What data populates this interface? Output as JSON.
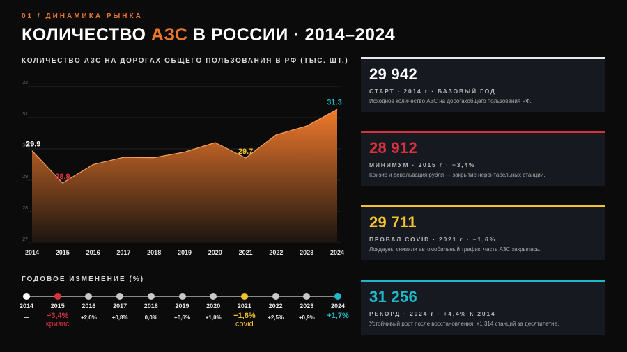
{
  "header": {
    "kicker": "01 / ДИНАМИКА РЫНКА",
    "title_pre": "КОЛИЧЕСТВО ",
    "title_accent": "АЗС",
    "title_post": " В РОССИИ · 2014–2024"
  },
  "chart_subtitle": "КОЛИЧЕСТВО АЗС НА ДОРОГАХ ОБЩЕГО ПОЛЬЗОВАНИЯ В РФ (ТЫС. ШТ.)",
  "chart_data": {
    "type": "area",
    "title": "КОЛИЧЕСТВО АЗС НА ДОРОГАХ ОБЩЕГО ПОЛЬЗОВАНИЯ В РФ (ТЫС. ШТ.)",
    "x": [
      "2014",
      "2015",
      "2016",
      "2017",
      "2018",
      "2019",
      "2020",
      "2021",
      "2022",
      "2023",
      "2024"
    ],
    "series": [
      {
        "values": [
          29.94,
          28.91,
          29.5,
          29.73,
          29.72,
          29.9,
          30.2,
          29.71,
          30.45,
          30.73,
          31.26
        ]
      }
    ],
    "ylim": [
      27,
      32
    ],
    "yticks": [
      "27",
      "28",
      "29",
      "30",
      "31",
      "32"
    ],
    "grid": true,
    "annotations": [
      {
        "index": 0,
        "text": "29.9",
        "color": "#ffffff"
      },
      {
        "index": 1,
        "text": "28.9",
        "color": "#d8323f"
      },
      {
        "index": 7,
        "text": "29.7",
        "color": "#f2c12e"
      },
      {
        "index": 10,
        "text": "31.3",
        "color": "#1fb8c9"
      }
    ],
    "colors": {
      "fill_top": "#f07a2c",
      "fill_bottom": "#1a1410",
      "line": "#f5a15c"
    }
  },
  "yoy": {
    "title": "ГОДОВОЕ ИЗМЕНЕНИЕ (%)",
    "items": [
      {
        "year": "2014",
        "value": "—",
        "note": "",
        "dot": "#ffffff",
        "color": "#e6e6e6"
      },
      {
        "year": "2015",
        "value": "−3,4%",
        "note": "кризис",
        "dot": "#d8323f",
        "color": "#d8323f"
      },
      {
        "year": "2016",
        "value": "+2,0%",
        "note": "",
        "dot": "#c8c8c8",
        "color": "#e6e6e6"
      },
      {
        "year": "2017",
        "value": "+0,8%",
        "note": "",
        "dot": "#c8c8c8",
        "color": "#e6e6e6"
      },
      {
        "year": "2018",
        "value": "0,0%",
        "note": "",
        "dot": "#c8c8c8",
        "color": "#e6e6e6"
      },
      {
        "year": "2019",
        "value": "+0,6%",
        "note": "",
        "dot": "#c8c8c8",
        "color": "#e6e6e6"
      },
      {
        "year": "2020",
        "value": "+1,0%",
        "note": "",
        "dot": "#c8c8c8",
        "color": "#e6e6e6"
      },
      {
        "year": "2021",
        "value": "−1,6%",
        "note": "covid",
        "dot": "#f2c12e",
        "color": "#f2c12e"
      },
      {
        "year": "2022",
        "value": "+2,5%",
        "note": "",
        "dot": "#c8c8c8",
        "color": "#e6e6e6"
      },
      {
        "year": "2023",
        "value": "+0,9%",
        "note": "",
        "dot": "#c8c8c8",
        "color": "#e6e6e6"
      },
      {
        "year": "2024",
        "value": "+1,7%",
        "note": "",
        "dot": "#1fb8c9",
        "color": "#1fb8c9"
      }
    ]
  },
  "cards": [
    {
      "value": "29 942",
      "label": "СТАРТ · 2014 г · БАЗОВЫЙ ГОД",
      "desc": "Исходное количество АЗС на дорогахобщего пользования РФ.",
      "color": "#ffffff",
      "bar": "#e8e8e8"
    },
    {
      "value": "28 912",
      "label": "МИНИМУМ · 2015 г · −3,4%",
      "desc": "Кризис и девальвация рубля — закрытие нерентабельных станций.",
      "color": "#d8323f",
      "bar": "#d8323f"
    },
    {
      "value": "29 711",
      "label": "ПРОВАЛ COVID · 2021 г · −1,6%",
      "desc": "Локдауны снизили автомобильный трафик, часть АЗС закрылась.",
      "color": "#f2c12e",
      "bar": "#f2c12e"
    },
    {
      "value": "31 256",
      "label": "РЕКОРД · 2024 г · +4,4% К 2014",
      "desc": "Устойчивый рост после восстановления. +1 314 станций за десятилетие.",
      "color": "#1fb8c9",
      "bar": "#1fb8c9"
    }
  ]
}
